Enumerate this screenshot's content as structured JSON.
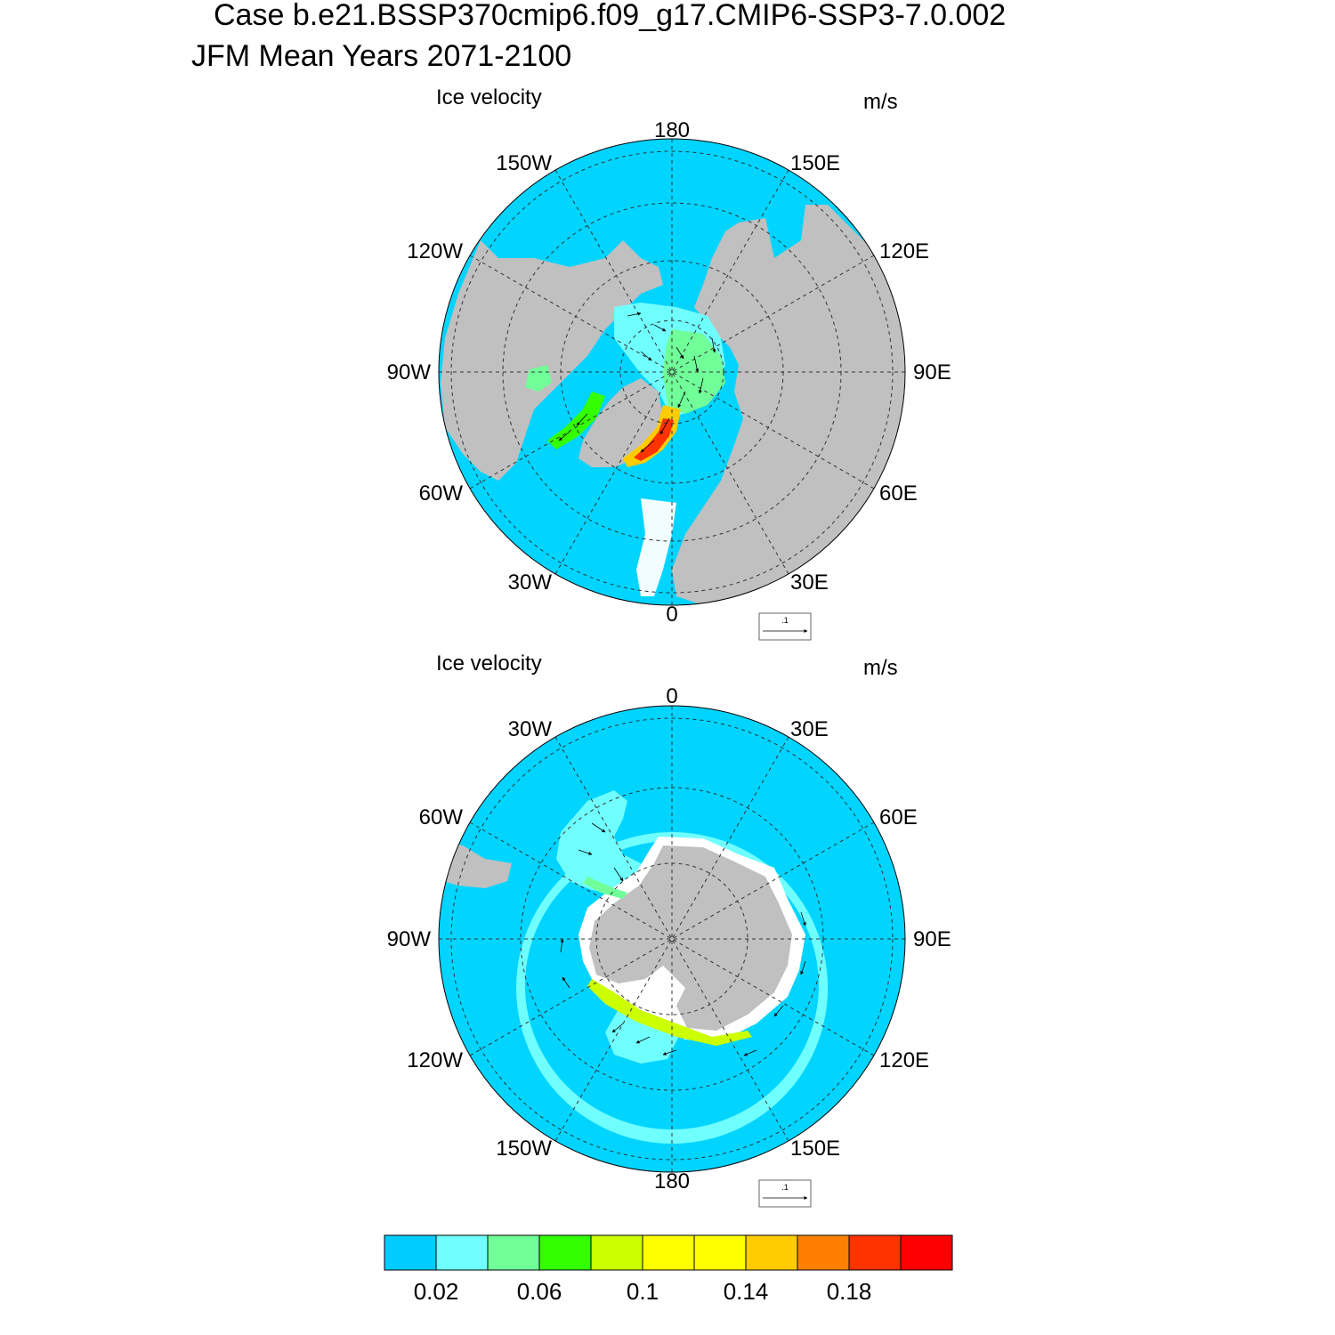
{
  "title": {
    "line1": "Case b.e21.BSSP370cmip6.f09_g17.CMIP6-SSP3-7.0.002",
    "line2": "JFM Mean   Years 2071-2100"
  },
  "colors": {
    "ocean": "#00d4ff",
    "land": "#c0c0c0",
    "open_water": "#ffffff"
  },
  "panels": [
    {
      "id": "north",
      "hemisphere": "Arctic",
      "left_label": "Ice velocity",
      "units": "m/s",
      "lon_labels": [
        "180",
        "150E",
        "120E",
        "90E",
        "60E",
        "30E",
        "0",
        "30W",
        "60W",
        "90W",
        "120W",
        "150W"
      ],
      "reference_vector_label": ".1"
    },
    {
      "id": "south",
      "hemisphere": "Antarctic",
      "left_label": "Ice velocity",
      "units": "m/s",
      "lon_labels": [
        "0",
        "30E",
        "60E",
        "90E",
        "120E",
        "150E",
        "180",
        "150W",
        "120W",
        "90W",
        "60W",
        "30W"
      ],
      "reference_vector_label": ".1"
    }
  ],
  "colorbar": {
    "colors": [
      "#00ccff",
      "#70ffff",
      "#70ff98",
      "#33ff00",
      "#ccff00",
      "#ffff00",
      "#ffff00",
      "#ffcc00",
      "#ff8000",
      "#ff3300",
      "#ff0000"
    ],
    "tick_labels": [
      "0.02",
      "0.06",
      "0.1",
      "0.14",
      "0.18"
    ]
  }
}
